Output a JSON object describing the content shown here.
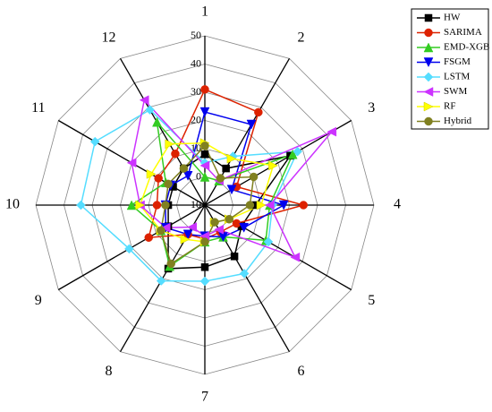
{
  "chart_data": {
    "type": "radar",
    "categories": [
      "1",
      "2",
      "3",
      "4",
      "5",
      "6",
      "7",
      "8",
      "9",
      "10",
      "11",
      "12"
    ],
    "rlim": [
      -10,
      50
    ],
    "rticks": [
      -10,
      0,
      10,
      20,
      30,
      40,
      50
    ],
    "grid": true,
    "legend": "right",
    "series": [
      {
        "name": "HW",
        "color": "#000000",
        "marker": "square",
        "values": [
          8,
          5,
          25,
          8,
          5,
          11,
          12,
          16,
          5,
          3,
          3,
          5
        ]
      },
      {
        "name": "SARIMA",
        "color": "#dd2200",
        "marker": "circle",
        "values": [
          31,
          28,
          3,
          25,
          3,
          1,
          2,
          2,
          13,
          7,
          9,
          11
        ]
      },
      {
        "name": "EMD-XGB",
        "color": "#33cc22",
        "marker": "triangle-up",
        "values": [
          0,
          0,
          26,
          13,
          15,
          3,
          3,
          15,
          8,
          16,
          6,
          24
        ]
      },
      {
        "name": "FSGM",
        "color": "#0000ee",
        "marker": "triangle-down",
        "values": [
          23,
          23,
          1,
          18,
          6,
          3,
          1,
          2,
          6,
          4,
          4,
          2
        ]
      },
      {
        "name": "LSTM",
        "color": "#55ddff",
        "marker": "diamond",
        "values": [
          5,
          10,
          28,
          14,
          16,
          18,
          17,
          21,
          21,
          34,
          35,
          29
        ]
      },
      {
        "name": "SWM",
        "color": "#cc33ff",
        "marker": "triangle-left",
        "values": [
          4,
          0,
          42,
          13,
          27,
          0,
          1,
          -1,
          6,
          13,
          20,
          33
        ]
      },
      {
        "name": "RF",
        "color": "#ffff00",
        "marker": "triangle-right",
        "values": [
          12,
          9,
          18,
          10,
          0,
          -3,
          3,
          4,
          8,
          13,
          12,
          15
        ]
      },
      {
        "name": "Hybrid",
        "color": "#808020",
        "marker": "circle",
        "values": [
          11,
          1,
          10,
          6,
          0,
          -3,
          3,
          14,
          8,
          4,
          5,
          5
        ]
      }
    ]
  }
}
